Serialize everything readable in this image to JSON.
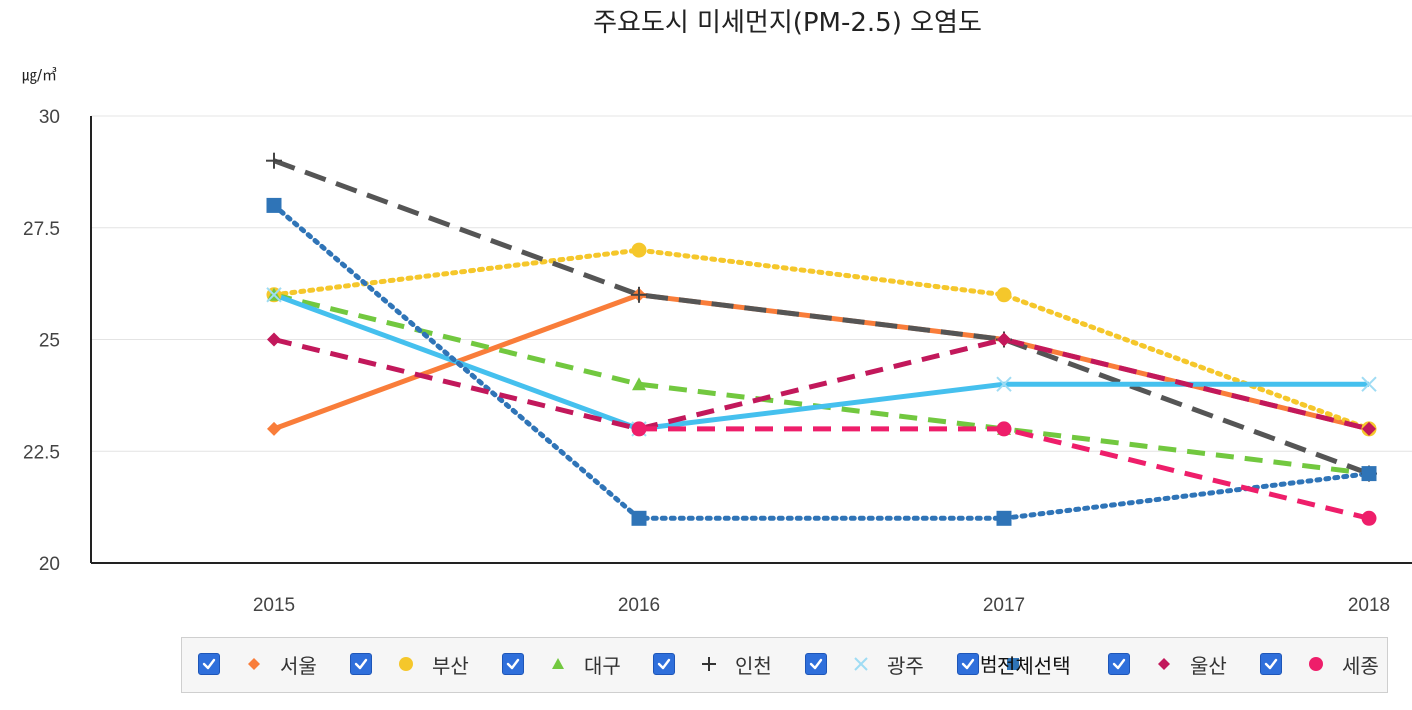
{
  "chart_data": {
    "type": "line",
    "title": "주요도시 미세먼지(PM-2.5) 오염도",
    "ylabel": "㎍/㎥",
    "xlabel": "",
    "x": [
      "2015",
      "2016",
      "2017",
      "2018"
    ],
    "ylim": [
      20,
      30
    ],
    "yticks": [
      "30",
      "27.5",
      "25",
      "22.5",
      "20"
    ],
    "ytick_values": [
      30,
      27.5,
      25,
      22.5,
      20
    ],
    "grid": true,
    "legend_position": "bottom",
    "series": [
      {
        "name": "서울",
        "values": [
          23,
          26,
          25,
          23
        ],
        "color": "#f97d3a",
        "dash": "solid",
        "marker": "diamond"
      },
      {
        "name": "부산",
        "values": [
          26,
          27,
          26,
          23
        ],
        "color": "#f5c72b",
        "dash": "dot",
        "marker": "circle"
      },
      {
        "name": "대구",
        "values": [
          26,
          24,
          23,
          22
        ],
        "color": "#72c83f",
        "dash": "dash",
        "marker": "triangle"
      },
      {
        "name": "인천",
        "values": [
          29,
          26,
          25,
          22
        ],
        "color": "#555555",
        "dash": "longdash",
        "marker": "plus"
      },
      {
        "name": "광주",
        "values": [
          26,
          23,
          24,
          24
        ],
        "color": "#45c0ee",
        "dash": "solid",
        "marker": "x"
      },
      {
        "name": "전체선택",
        "values": [
          28,
          21,
          21,
          22
        ],
        "color": "#2f74b7",
        "dash": "dot",
        "marker": "square"
      },
      {
        "name": "울산",
        "values": [
          25,
          23,
          25,
          23
        ],
        "color": "#c2185b",
        "dash": "dash",
        "marker": "diamond"
      },
      {
        "name": "세종",
        "values": [
          null,
          23,
          23,
          21
        ],
        "color": "#ee1e6a",
        "dash": "dash",
        "marker": "circle"
      }
    ]
  },
  "legend_overlay_text": "범 "
}
